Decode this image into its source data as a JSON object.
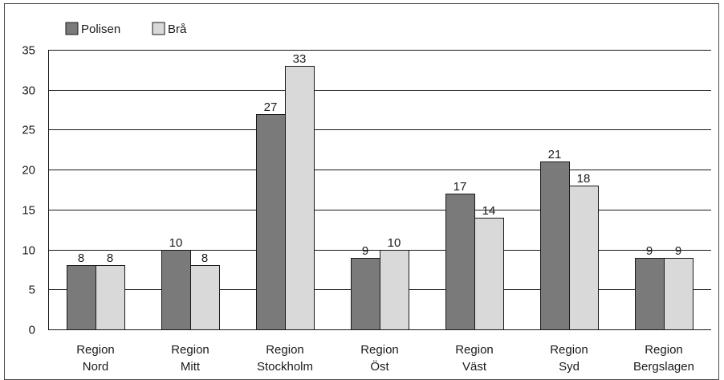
{
  "chart_data": {
    "type": "bar",
    "title": "",
    "xlabel": "",
    "ylabel": "",
    "ylim": [
      0,
      35
    ],
    "yticks": [
      0,
      5,
      10,
      15,
      20,
      25,
      30,
      35
    ],
    "grid": true,
    "legend_position": "top-left",
    "categories": [
      [
        "Region",
        "Nord"
      ],
      [
        "Region",
        "Mitt"
      ],
      [
        "Region",
        "Stockholm"
      ],
      [
        "Region",
        "Öst"
      ],
      [
        "Region",
        "Väst"
      ],
      [
        "Region",
        "Syd"
      ],
      [
        "Region",
        "Bergslagen"
      ]
    ],
    "series": [
      {
        "name": "Polisen",
        "color": "#7a7a7a",
        "values": [
          8,
          10,
          27,
          9,
          17,
          21,
          9
        ]
      },
      {
        "name": "Brå",
        "color": "#d9d9d9",
        "values": [
          8,
          8,
          33,
          10,
          14,
          18,
          9
        ]
      }
    ]
  }
}
